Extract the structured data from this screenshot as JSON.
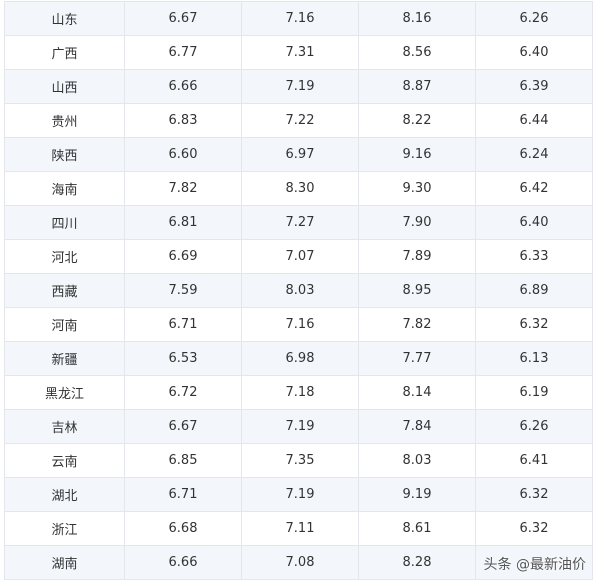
{
  "rows": [
    [
      "山东",
      "6.67",
      "7.16",
      "8.16",
      "6.26"
    ],
    [
      "广西",
      "6.77",
      "7.31",
      "8.56",
      "6.40"
    ],
    [
      "山西",
      "6.66",
      "7.19",
      "8.87",
      "6.39"
    ],
    [
      "贵州",
      "6.83",
      "7.22",
      "8.22",
      "6.44"
    ],
    [
      "陕西",
      "6.60",
      "6.97",
      "9.16",
      "6.24"
    ],
    [
      "海南",
      "7.82",
      "8.30",
      "9.30",
      "6.42"
    ],
    [
      "四川",
      "6.81",
      "7.27",
      "7.90",
      "6.40"
    ],
    [
      "河北",
      "6.69",
      "7.07",
      "7.89",
      "6.33"
    ],
    [
      "西藏",
      "7.59",
      "8.03",
      "8.95",
      "6.89"
    ],
    [
      "河南",
      "6.71",
      "7.16",
      "7.82",
      "6.32"
    ],
    [
      "新疆",
      "6.53",
      "6.98",
      "7.77",
      "6.13"
    ],
    [
      "黑龙江",
      "6.72",
      "7.18",
      "8.14",
      "6.19"
    ],
    [
      "吉林",
      "6.67",
      "7.19",
      "7.84",
      "6.26"
    ],
    [
      "云南",
      "6.85",
      "7.35",
      "8.03",
      "6.41"
    ],
    [
      "湖北",
      "6.71",
      "7.19",
      "9.19",
      "6.32"
    ],
    [
      "浙江",
      "6.68",
      "7.11",
      "8.61",
      "6.32"
    ],
    [
      "湖南",
      "6.66",
      "7.08",
      "8.28",
      ""
    ]
  ],
  "watermark": "头条 @最新油价"
}
